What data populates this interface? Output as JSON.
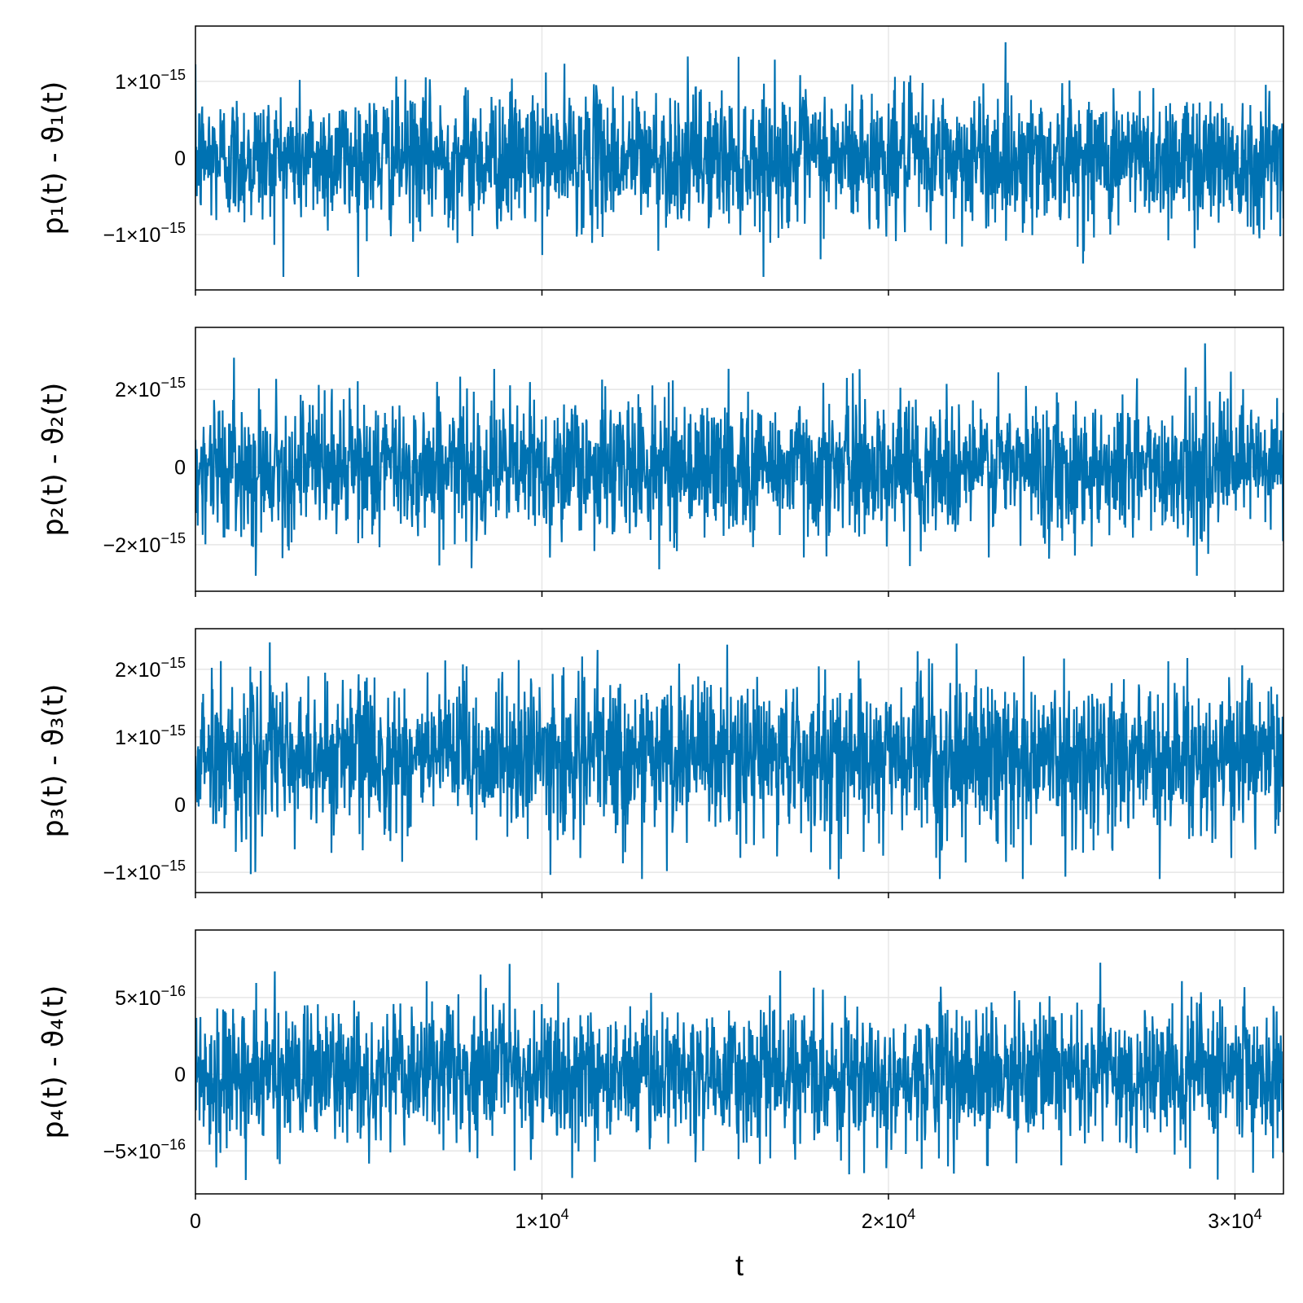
{
  "colors": {
    "series": "#0072b2",
    "grid": "#e6e6e6",
    "frame": "#000000"
  },
  "chart_data": [
    {
      "type": "line",
      "ylabel": "p₁(t) - ϑ₁(t)",
      "xlabel": "",
      "xlim": [
        0,
        31400
      ],
      "ylim": [
        -1.72e-15,
        1.72e-15
      ],
      "xticks": [
        0,
        10000,
        20000,
        30000
      ],
      "xtick_labels": [
        "",
        "",
        "",
        ""
      ],
      "yticks": [
        -1e-15,
        0,
        1e-15
      ],
      "ytick_labels": [
        {
          "mant": "−1×10",
          "exp": "−15"
        },
        {
          "mant": "0",
          "exp": ""
        },
        {
          "mant": "1×10",
          "exp": "−15"
        }
      ],
      "series": [
        {
          "mean": 0,
          "spread": 4.4e-16,
          "peak_max": 1.55e-15,
          "peak_min": -1.55e-15
        }
      ]
    },
    {
      "type": "line",
      "ylabel": "p₂(t) - ϑ₂(t)",
      "xlabel": "",
      "xlim": [
        0,
        31400
      ],
      "ylim": [
        -3.2e-15,
        3.6e-15
      ],
      "xticks": [
        0,
        10000,
        20000,
        30000
      ],
      "xtick_labels": [
        "",
        "",
        "",
        ""
      ],
      "yticks": [
        -2e-15,
        0,
        2e-15
      ],
      "ytick_labels": [
        {
          "mant": "−2×10",
          "exp": "−15"
        },
        {
          "mant": "0",
          "exp": ""
        },
        {
          "mant": "2×10",
          "exp": "−15"
        }
      ],
      "series": [
        {
          "mean": 0,
          "spread": 8.8e-16,
          "peak_max": 3.3e-15,
          "peak_min": -2.8e-15
        }
      ]
    },
    {
      "type": "line",
      "ylabel": "p₃(t) - ϑ₃(t)",
      "xlabel": "",
      "xlim": [
        0,
        31400
      ],
      "ylim": [
        -1.3e-15,
        2.6e-15
      ],
      "xticks": [
        0,
        10000,
        20000,
        30000
      ],
      "xtick_labels": [
        "",
        "",
        "",
        ""
      ],
      "yticks": [
        -1e-15,
        0,
        1e-15,
        2e-15
      ],
      "ytick_labels": [
        {
          "mant": "−1×10",
          "exp": "−15"
        },
        {
          "mant": "0",
          "exp": ""
        },
        {
          "mant": "1×10",
          "exp": "−15"
        },
        {
          "mant": "2×10",
          "exp": "−15"
        }
      ],
      "series": [
        {
          "mean": 7e-16,
          "spread": 5.6e-16,
          "peak_max": 2.4e-15,
          "peak_min": -1.1e-15
        }
      ]
    },
    {
      "type": "line",
      "ylabel": "p₄(t) - ϑ₄(t)",
      "xlabel": "t",
      "xlim": [
        0,
        31400
      ],
      "ylim": [
        -7.8e-16,
        9.4e-16
      ],
      "xticks": [
        0,
        10000,
        20000,
        30000
      ],
      "xtick_labels": [
        {
          "mant": "0",
          "exp": ""
        },
        {
          "mant": "1×10",
          "exp": "4"
        },
        {
          "mant": "2×10",
          "exp": "4"
        },
        {
          "mant": "3×10",
          "exp": "4"
        }
      ],
      "yticks": [
        -5e-16,
        0,
        5e-16
      ],
      "ytick_labels": [
        {
          "mant": "−5×10",
          "exp": "−16"
        },
        {
          "mant": "0",
          "exp": ""
        },
        {
          "mant": "5×10",
          "exp": "−16"
        }
      ],
      "series": [
        {
          "mean": 0,
          "spread": 2.2e-16,
          "peak_max": 8.6e-16,
          "peak_min": -6.9e-16
        }
      ]
    }
  ]
}
